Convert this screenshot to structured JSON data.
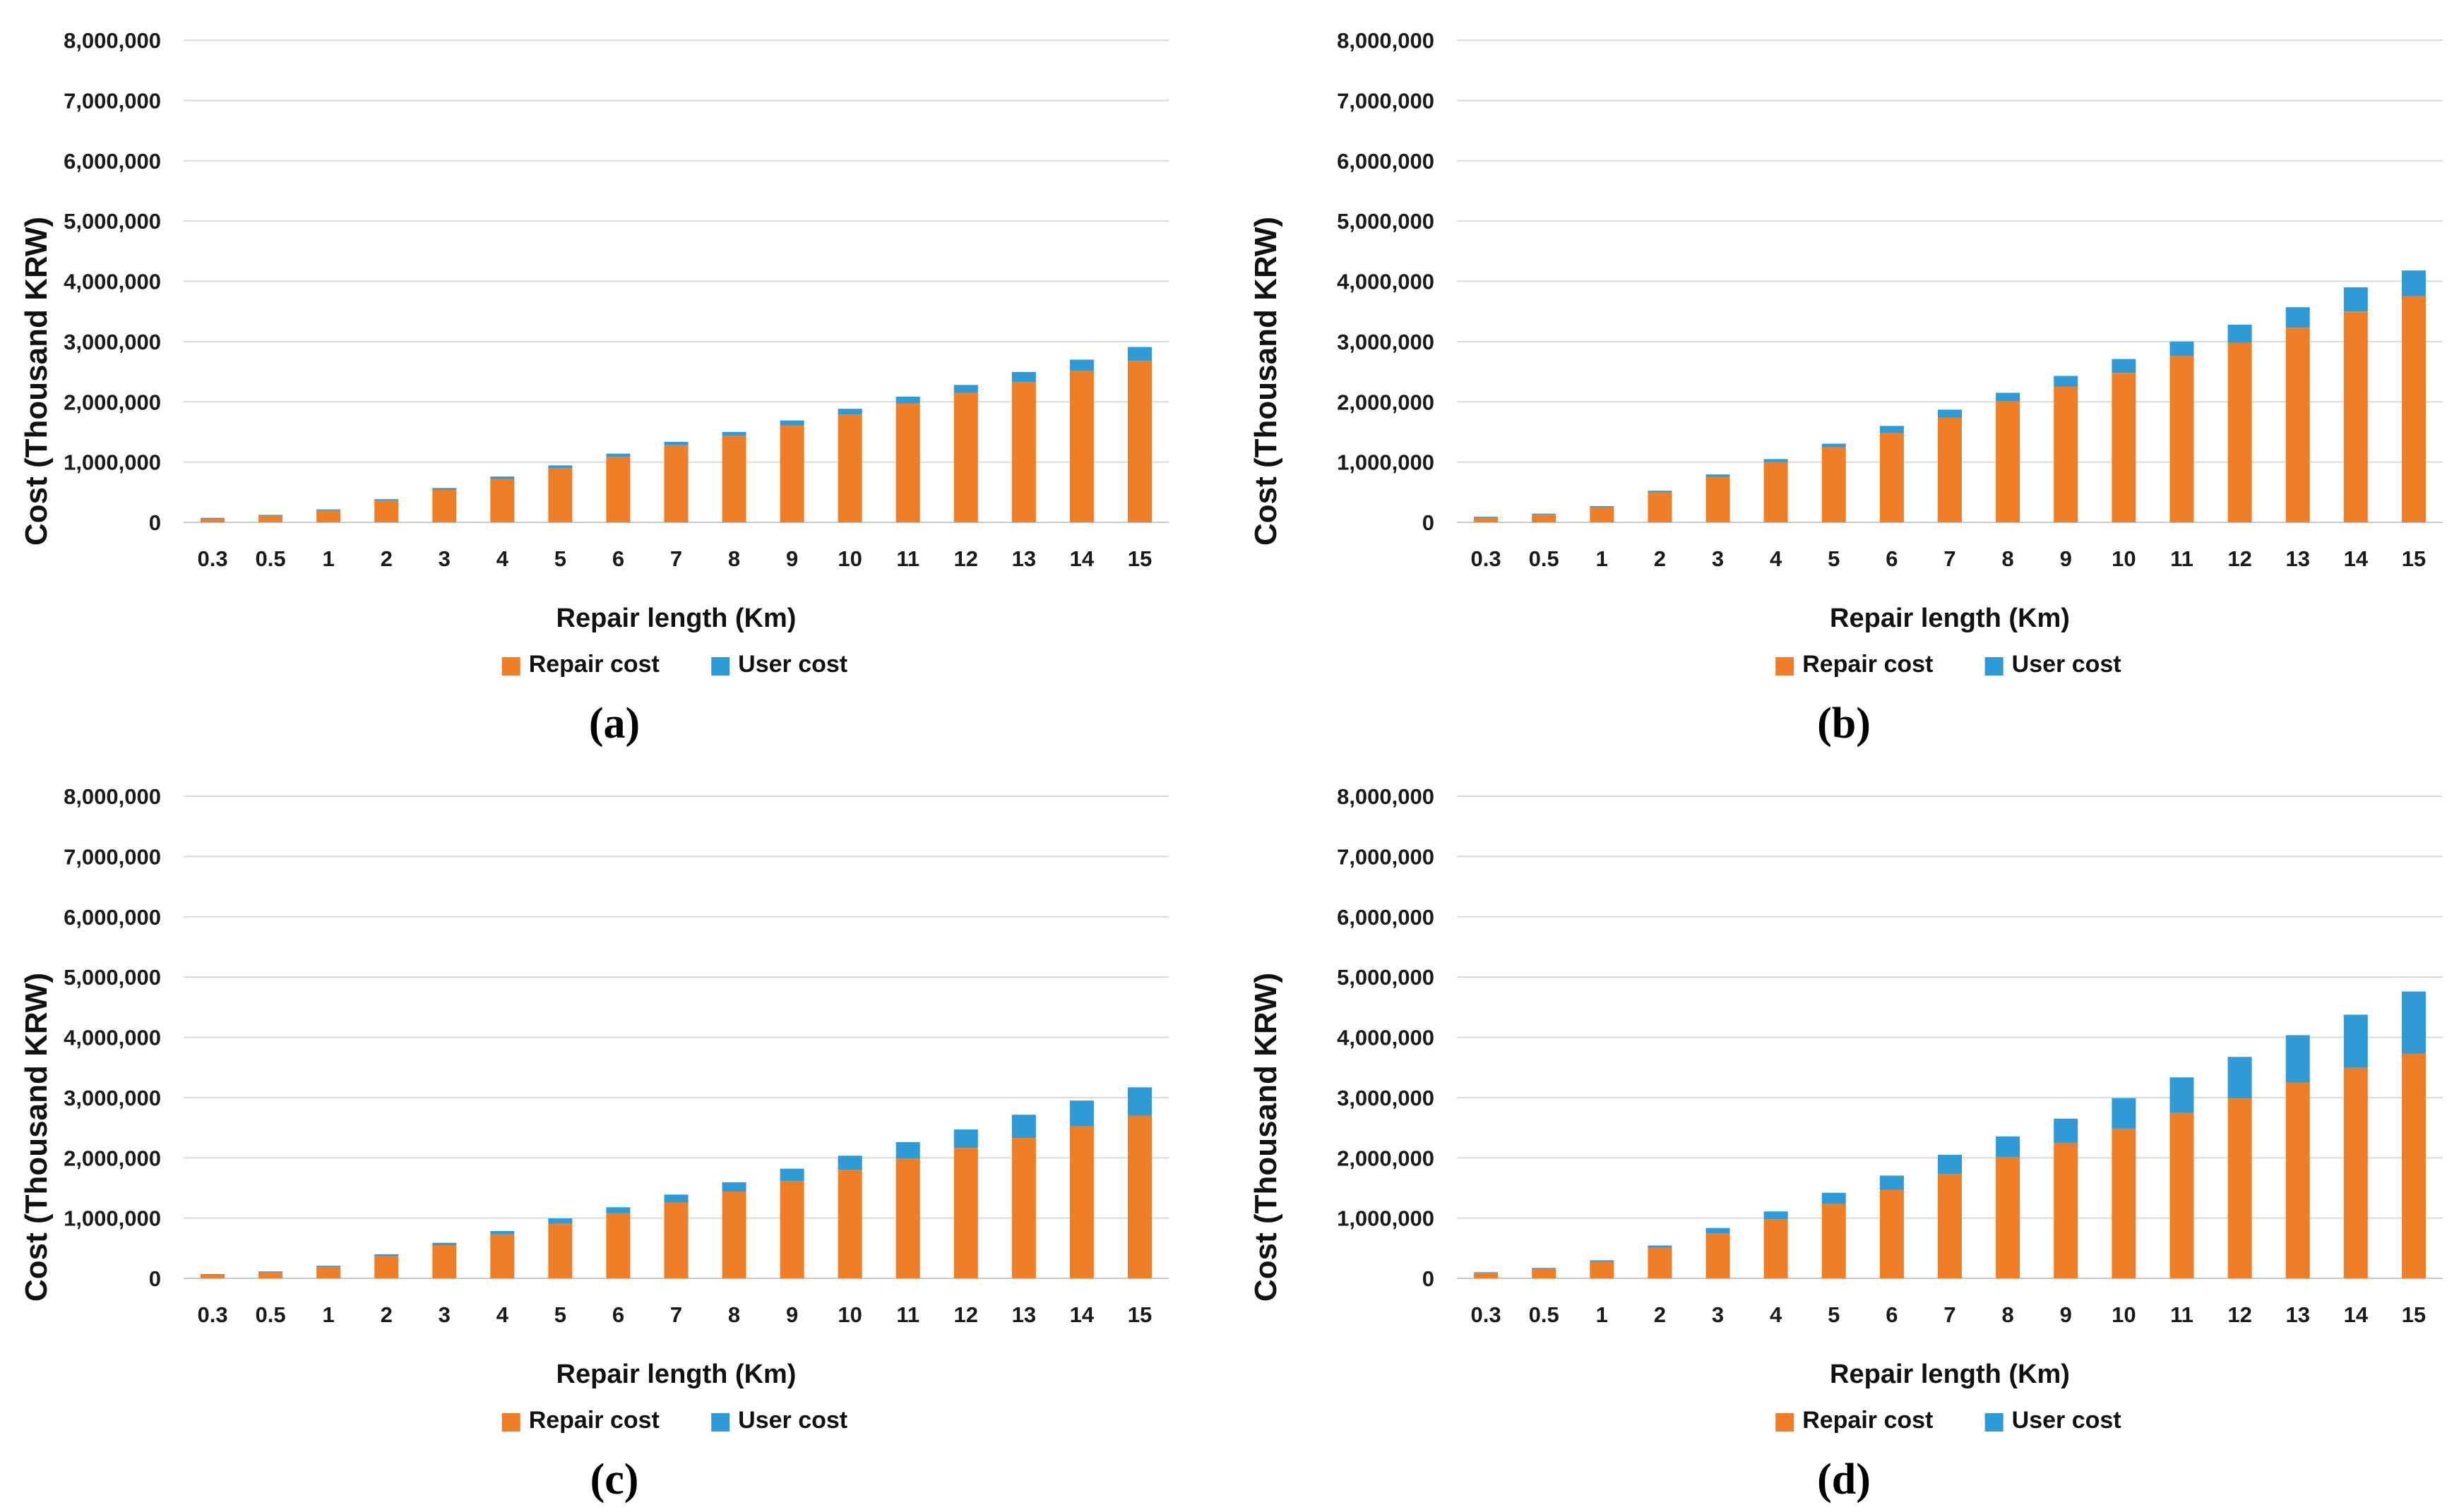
{
  "page": {
    "background": "#ffffff"
  },
  "colors": {
    "repair": "#F07E27",
    "user": "#2E9AD6",
    "gridline": "#D9D9D9",
    "axis_line": "#C9C9C9",
    "text": "#111111"
  },
  "chart_data": [
    {
      "type": "bar",
      "stacked": true,
      "caption": "(a)",
      "xlabel": "Repair length (Km)",
      "ylabel": "Cost (Thousand KRW)",
      "ylim": [
        0,
        8000000
      ],
      "ytick_step": 1000000,
      "ytick_labels": [
        "0",
        "1,000,000",
        "2,000,000",
        "3,000,000",
        "4,000,000",
        "5,000,000",
        "6,000,000",
        "7,000,000",
        "8,000,000"
      ],
      "grid": true,
      "legend_position": "bottom",
      "categories": [
        "0.3",
        "0.5",
        "1",
        "2",
        "3",
        "4",
        "5",
        "6",
        "7",
        "8",
        "9",
        "10",
        "11",
        "12",
        "13",
        "14",
        "15"
      ],
      "legend": [
        {
          "name": "Repair cost",
          "color_key": "repair"
        },
        {
          "name": "User cost",
          "color_key": "user"
        }
      ],
      "series": [
        {
          "name": "Repair cost",
          "values": [
            65000,
            110000,
            195000,
            360000,
            540000,
            720000,
            900000,
            1090000,
            1280000,
            1440000,
            1610000,
            1790000,
            1970000,
            2150000,
            2330000,
            2510000,
            2680000
          ]
        },
        {
          "name": "User cost",
          "values": [
            10000,
            15000,
            20000,
            25000,
            30000,
            40000,
            45000,
            50000,
            55000,
            60000,
            80000,
            95000,
            115000,
            130000,
            165000,
            190000,
            230000
          ]
        }
      ]
    },
    {
      "type": "bar",
      "stacked": true,
      "caption": "(b)",
      "xlabel": "Repair length (Km)",
      "ylabel": "Cost (Thousand KRW)",
      "ylim": [
        0,
        8000000
      ],
      "ytick_step": 1000000,
      "ytick_labels": [
        "0",
        "1,000,000",
        "2,000,000",
        "3,000,000",
        "4,000,000",
        "5,000,000",
        "6,000,000",
        "7,000,000",
        "8,000,000"
      ],
      "grid": true,
      "legend_position": "bottom",
      "categories": [
        "0.3",
        "0.5",
        "1",
        "2",
        "3",
        "4",
        "5",
        "6",
        "7",
        "8",
        "9",
        "10",
        "11",
        "12",
        "13",
        "14",
        "15"
      ],
      "legend": [
        {
          "name": "Repair cost",
          "color_key": "repair"
        },
        {
          "name": "User cost",
          "color_key": "user"
        }
      ],
      "series": [
        {
          "name": "Repair cost",
          "values": [
            85000,
            130000,
            250000,
            495000,
            755000,
            1000000,
            1245000,
            1480000,
            1740000,
            2010000,
            2250000,
            2480000,
            2760000,
            2980000,
            3230000,
            3500000,
            3750000
          ]
        },
        {
          "name": "User cost",
          "values": [
            10000,
            15000,
            20000,
            30000,
            40000,
            50000,
            60000,
            120000,
            130000,
            140000,
            180000,
            230000,
            240000,
            300000,
            340000,
            400000,
            430000
          ]
        }
      ]
    },
    {
      "type": "bar",
      "stacked": true,
      "caption": "(c)",
      "xlabel": "Repair length (Km)",
      "ylabel": "Cost (Thousand KRW)",
      "ylim": [
        0,
        8000000
      ],
      "ytick_step": 1000000,
      "ytick_labels": [
        "0",
        "1,000,000",
        "2,000,000",
        "3,000,000",
        "4,000,000",
        "5,000,000",
        "6,000,000",
        "7,000,000",
        "8,000,000"
      ],
      "grid": true,
      "legend_position": "bottom",
      "categories": [
        "0.3",
        "0.5",
        "1",
        "2",
        "3",
        "4",
        "5",
        "6",
        "7",
        "8",
        "9",
        "10",
        "11",
        "12",
        "13",
        "14",
        "15"
      ],
      "legend": [
        {
          "name": "Repair cost",
          "color_key": "repair"
        },
        {
          "name": "User cost",
          "color_key": "user"
        }
      ],
      "series": [
        {
          "name": "Repair cost",
          "values": [
            60000,
            100000,
            190000,
            370000,
            550000,
            730000,
            905000,
            1080000,
            1260000,
            1440000,
            1615000,
            1800000,
            1990000,
            2165000,
            2330000,
            2520000,
            2700000
          ]
        },
        {
          "name": "User cost",
          "values": [
            10000,
            15000,
            20000,
            30000,
            40000,
            55000,
            90000,
            100000,
            130000,
            155000,
            205000,
            235000,
            270000,
            305000,
            385000,
            430000,
            470000
          ]
        }
      ]
    },
    {
      "type": "bar",
      "stacked": true,
      "caption": "(d)",
      "xlabel": "Repair length (Km)",
      "ylabel": "Cost (Thousand KRW)",
      "ylim": [
        0,
        8000000
      ],
      "ytick_step": 1000000,
      "ytick_labels": [
        "0",
        "1,000,000",
        "2,000,000",
        "3,000,000",
        "4,000,000",
        "5,000,000",
        "6,000,000",
        "7,000,000",
        "8,000,000"
      ],
      "grid": true,
      "legend_position": "bottom",
      "categories": [
        "0.3",
        "0.5",
        "1",
        "2",
        "3",
        "4",
        "5",
        "6",
        "7",
        "8",
        "9",
        "10",
        "11",
        "12",
        "13",
        "14",
        "15"
      ],
      "legend": [
        {
          "name": "Repair cost",
          "color_key": "repair"
        },
        {
          "name": "User cost",
          "color_key": "user"
        }
      ],
      "series": [
        {
          "name": "Repair cost",
          "values": [
            90000,
            155000,
            275000,
            510000,
            745000,
            980000,
            1235000,
            1470000,
            1730000,
            2015000,
            2250000,
            2485000,
            2745000,
            2985000,
            3250000,
            3495000,
            3730000
          ]
        },
        {
          "name": "User cost",
          "values": [
            12000,
            18000,
            25000,
            35000,
            90000,
            130000,
            185000,
            235000,
            320000,
            340000,
            400000,
            505000,
            590000,
            690000,
            785000,
            880000,
            1030000
          ]
        }
      ]
    }
  ]
}
